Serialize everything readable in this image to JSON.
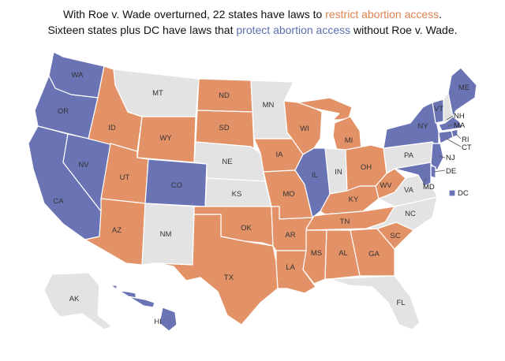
{
  "headline": {
    "line1_prefix": "With Roe v. Wade overturned, 22 states have laws to ",
    "line1_highlight": "restrict abortion access",
    "line1_suffix": ".",
    "line2_prefix": "Sixteen states plus DC have laws that ",
    "line2_highlight": "protect abortion access",
    "line2_suffix": " without Roe v. Wade."
  },
  "colors": {
    "restrict": "#e39267",
    "protect": "#6a74b5",
    "neutral": "#e3e3e3",
    "restrict_text": "#e0834f",
    "protect_text": "#5b6fb0"
  },
  "states": [
    {
      "abbr": "WA",
      "status": "protect"
    },
    {
      "abbr": "OR",
      "status": "protect"
    },
    {
      "abbr": "CA",
      "status": "protect"
    },
    {
      "abbr": "NV",
      "status": "protect"
    },
    {
      "abbr": "ID",
      "status": "restrict"
    },
    {
      "abbr": "MT",
      "status": "neutral"
    },
    {
      "abbr": "WY",
      "status": "restrict"
    },
    {
      "abbr": "UT",
      "status": "restrict"
    },
    {
      "abbr": "AZ",
      "status": "restrict"
    },
    {
      "abbr": "CO",
      "status": "protect"
    },
    {
      "abbr": "NM",
      "status": "neutral"
    },
    {
      "abbr": "ND",
      "status": "restrict"
    },
    {
      "abbr": "SD",
      "status": "restrict"
    },
    {
      "abbr": "NE",
      "status": "neutral"
    },
    {
      "abbr": "KS",
      "status": "neutral"
    },
    {
      "abbr": "OK",
      "status": "restrict"
    },
    {
      "abbr": "TX",
      "status": "restrict"
    },
    {
      "abbr": "MN",
      "status": "neutral"
    },
    {
      "abbr": "IA",
      "status": "restrict"
    },
    {
      "abbr": "MO",
      "status": "restrict"
    },
    {
      "abbr": "AR",
      "status": "restrict"
    },
    {
      "abbr": "LA",
      "status": "restrict"
    },
    {
      "abbr": "WI",
      "status": "restrict"
    },
    {
      "abbr": "IL",
      "status": "protect"
    },
    {
      "abbr": "MI",
      "status": "restrict"
    },
    {
      "abbr": "IN",
      "status": "neutral"
    },
    {
      "abbr": "OH",
      "status": "restrict"
    },
    {
      "abbr": "KY",
      "status": "restrict"
    },
    {
      "abbr": "TN",
      "status": "restrict"
    },
    {
      "abbr": "MS",
      "status": "restrict"
    },
    {
      "abbr": "AL",
      "status": "restrict"
    },
    {
      "abbr": "GA",
      "status": "restrict"
    },
    {
      "abbr": "FL",
      "status": "neutral"
    },
    {
      "abbr": "SC",
      "status": "restrict"
    },
    {
      "abbr": "NC",
      "status": "neutral"
    },
    {
      "abbr": "VA",
      "status": "neutral"
    },
    {
      "abbr": "WV",
      "status": "restrict"
    },
    {
      "abbr": "PA",
      "status": "neutral"
    },
    {
      "abbr": "NY",
      "status": "protect"
    },
    {
      "abbr": "VT",
      "status": "protect"
    },
    {
      "abbr": "NH",
      "status": "neutral"
    },
    {
      "abbr": "ME",
      "status": "protect"
    },
    {
      "abbr": "MA",
      "status": "protect"
    },
    {
      "abbr": "RI",
      "status": "protect"
    },
    {
      "abbr": "CT",
      "status": "protect"
    },
    {
      "abbr": "NJ",
      "status": "protect"
    },
    {
      "abbr": "DE",
      "status": "protect"
    },
    {
      "abbr": "MD",
      "status": "protect"
    },
    {
      "abbr": "DC",
      "status": "protect"
    },
    {
      "abbr": "AK",
      "status": "neutral"
    },
    {
      "abbr": "HI",
      "status": "protect"
    }
  ]
}
